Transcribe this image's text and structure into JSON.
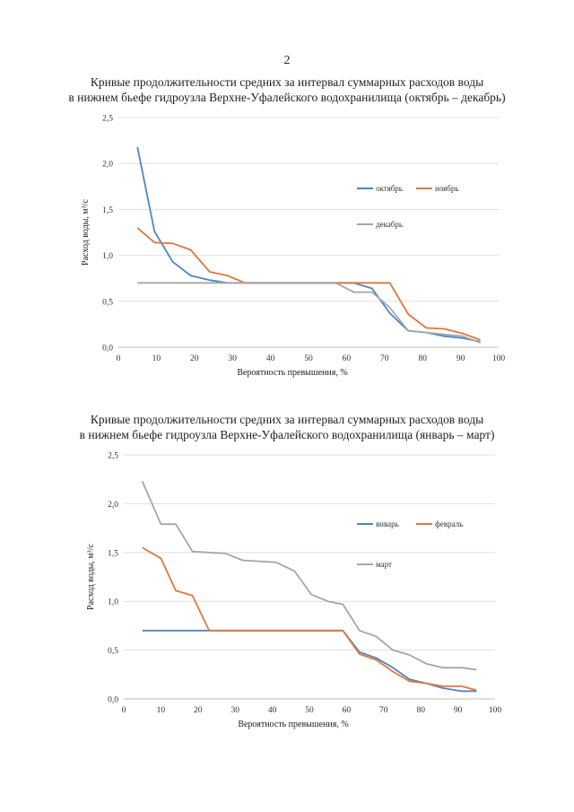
{
  "page": {
    "number": "2"
  },
  "chart_data": [
    {
      "type": "line",
      "title": [
        "Кривые продолжительности средних за интервал суммарных расходов воды",
        "в нижнем бьефе гидроузла Верхне-Уфалейского водохранилища (октябрь – декабрь)"
      ],
      "xlabel": "Вероятность превышения, %",
      "ylabel": "Расход воды, м³/с",
      "xlim": [
        0,
        100
      ],
      "ylim": [
        0,
        2.5
      ],
      "xticks": [
        "0",
        "10",
        "20",
        "30",
        "40",
        "50",
        "60",
        "70",
        "80",
        "90",
        "100"
      ],
      "yticks": [
        "0,0",
        "0,5",
        "1,0",
        "1,5",
        "2,0",
        "2,5"
      ],
      "grid": true,
      "legend": "right",
      "series": [
        {
          "name": "октябрь",
          "color": "#4a86c8",
          "x": [
            5,
            9.5,
            14.3,
            19,
            24,
            28.6,
            33.3,
            38,
            42.9,
            47.6,
            52.4,
            57.1,
            61.9,
            66.7,
            71.4,
            76.2,
            81,
            85.7,
            90.5,
            95.2
          ],
          "y": [
            2.18,
            1.26,
            0.93,
            0.78,
            0.73,
            0.7,
            0.7,
            0.7,
            0.7,
            0.7,
            0.7,
            0.7,
            0.7,
            0.64,
            0.37,
            0.18,
            0.16,
            0.12,
            0.1,
            0.06
          ]
        },
        {
          "name": "ноябрь",
          "color": "#e0773a",
          "x": [
            5,
            9.5,
            14.3,
            19,
            24,
            28.6,
            33.3,
            38,
            42.9,
            47.6,
            52.4,
            57.1,
            61.9,
            66.7,
            71.4,
            76.2,
            81,
            85.7,
            90.5,
            95.2
          ],
          "y": [
            1.3,
            1.14,
            1.13,
            1.06,
            0.82,
            0.78,
            0.7,
            0.7,
            0.7,
            0.7,
            0.7,
            0.7,
            0.7,
            0.7,
            0.7,
            0.36,
            0.21,
            0.2,
            0.15,
            0.08
          ]
        },
        {
          "name": "декабрь",
          "color": "#a6a6a6",
          "x": [
            5,
            9.5,
            14.3,
            19,
            24,
            28.6,
            33.3,
            38,
            42.9,
            47.6,
            52.4,
            57.1,
            61.9,
            66.7,
            71.4,
            76.2,
            81,
            85.7,
            90.5,
            95.2
          ],
          "y": [
            0.7,
            0.7,
            0.7,
            0.7,
            0.7,
            0.7,
            0.7,
            0.7,
            0.7,
            0.7,
            0.7,
            0.7,
            0.6,
            0.6,
            0.43,
            0.18,
            0.16,
            0.14,
            0.12,
            0.05
          ]
        }
      ]
    },
    {
      "type": "line",
      "title": [
        "Кривые продолжительности средних за интервал суммарных расходов воды",
        "в нижнем бьефе гидроузла Верхне-Уфалейского водохранилища (январь – март)"
      ],
      "xlabel": "Вероятность превышения, %",
      "ylabel": "Расход воды, м³/с",
      "xlim": [
        0,
        100
      ],
      "ylim": [
        0,
        2.5
      ],
      "xticks": [
        "0",
        "10",
        "20",
        "30",
        "40",
        "50",
        "60",
        "70",
        "80",
        "90",
        "100"
      ],
      "yticks": [
        "0,0",
        "0,5",
        "1,0",
        "1,5",
        "2,0",
        "2,5"
      ],
      "grid": true,
      "legend": "right",
      "series": [
        {
          "name": "январь",
          "color": "#4a86c8",
          "x": [
            5,
            10,
            14,
            18.5,
            23,
            27.5,
            32,
            36.5,
            41,
            46,
            50.5,
            55,
            59,
            63.5,
            68,
            72.5,
            77,
            81.5,
            86,
            91,
            95
          ],
          "y": [
            0.7,
            0.7,
            0.7,
            0.7,
            0.7,
            0.7,
            0.7,
            0.7,
            0.7,
            0.7,
            0.7,
            0.7,
            0.7,
            0.48,
            0.42,
            0.32,
            0.2,
            0.16,
            0.11,
            0.08,
            0.08
          ]
        },
        {
          "name": "февраль",
          "color": "#e0773a",
          "x": [
            5,
            10,
            14,
            18.5,
            23,
            27.5,
            32,
            36.5,
            41,
            46,
            50.5,
            55,
            59,
            63.5,
            68,
            72.5,
            77,
            81.5,
            86,
            91,
            95
          ],
          "y": [
            1.55,
            1.44,
            1.11,
            1.06,
            0.7,
            0.7,
            0.7,
            0.7,
            0.7,
            0.7,
            0.7,
            0.7,
            0.7,
            0.46,
            0.4,
            0.28,
            0.18,
            0.16,
            0.13,
            0.13,
            0.09
          ]
        },
        {
          "name": "март",
          "color": "#a6a6a6",
          "x": [
            5,
            10,
            14,
            18.5,
            23,
            27.5,
            32,
            36.5,
            41,
            46,
            50.5,
            55,
            59,
            63.5,
            68,
            72.5,
            77,
            81.5,
            86,
            91,
            95
          ],
          "y": [
            2.23,
            1.79,
            1.79,
            1.51,
            1.5,
            1.49,
            1.42,
            1.41,
            1.4,
            1.31,
            1.07,
            1.0,
            0.97,
            0.7,
            0.64,
            0.5,
            0.45,
            0.36,
            0.32,
            0.32,
            0.3
          ]
        }
      ]
    }
  ]
}
